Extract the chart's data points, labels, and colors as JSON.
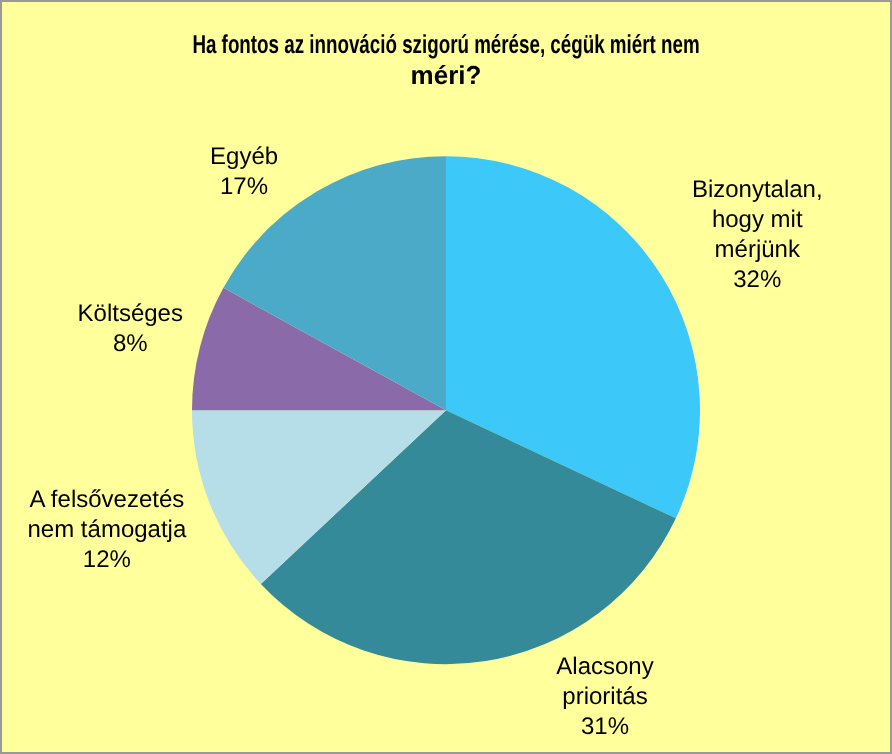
{
  "chart_data": {
    "type": "pie",
    "title": "Ha fontos az innováció szigorú mérése, cégük miért nem méri?",
    "categories": [
      "Bizonytalan, hogy mit mérjünk",
      "Alacsony prioritás",
      "A felsővezetés nem támogatja",
      "Költséges",
      "Egyéb"
    ],
    "values": [
      32,
      31,
      12,
      8,
      17
    ],
    "colors": [
      "#3cc8f8",
      "#358a9a",
      "#b6dee9",
      "#8a6aa8",
      "#4aaac8"
    ],
    "value_labels": [
      "32%",
      "31%",
      "12%",
      "8%",
      "17%"
    ],
    "legend": false
  }
}
